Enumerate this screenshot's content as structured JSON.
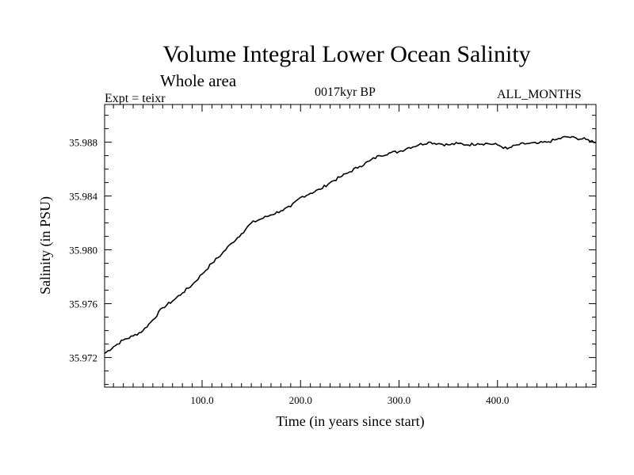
{
  "header": {
    "title": "Volume Integral Lower Ocean Salinity",
    "subtitle": "Whole area",
    "experiment": "Expt = teixr",
    "period": "0017kyr BP",
    "months": "ALL_MONTHS"
  },
  "chart_data": {
    "type": "line",
    "title": "Volume Integral Lower Ocean Salinity",
    "subtitle": "Whole area",
    "xlabel": "Time (in years since start)",
    "ylabel": "Salinity (in PSU)",
    "xlim": [
      1,
      500
    ],
    "ylim": [
      35.9698,
      35.9908
    ],
    "x_ticks": [
      100,
      200,
      300,
      400
    ],
    "x_tick_labels": [
      "100.0",
      "200.0",
      "300.0",
      "400.0"
    ],
    "y_ticks": [
      35.972,
      35.976,
      35.98,
      35.984,
      35.988
    ],
    "y_tick_labels": [
      "35.972",
      "35.976",
      "35.980",
      "35.984",
      "35.988"
    ],
    "grid": false,
    "legend": "none",
    "series": [
      {
        "x": [
          1,
          10,
          20,
          30,
          40,
          50,
          60,
          70,
          80,
          90,
          100,
          110,
          120,
          130,
          140,
          150,
          160,
          170,
          180,
          190,
          200,
          210,
          220,
          230,
          240,
          250,
          260,
          270,
          280,
          290,
          300,
          310,
          320,
          330,
          340,
          350,
          360,
          370,
          380,
          390,
          400,
          410,
          420,
          430,
          440,
          450,
          460,
          470,
          480,
          490,
          500
        ],
        "y": [
          35.9723,
          35.9728,
          35.9733,
          35.9736,
          35.974,
          35.9748,
          35.9757,
          35.9762,
          35.9768,
          35.9774,
          35.9782,
          35.979,
          35.9797,
          35.9805,
          35.9812,
          35.982,
          35.9823,
          35.9826,
          35.9829,
          35.9832,
          35.9839,
          35.9842,
          35.9845,
          35.985,
          35.9854,
          35.9858,
          35.9862,
          35.9866,
          35.987,
          35.9872,
          35.9873,
          35.9876,
          35.9878,
          35.988,
          35.9879,
          35.9878,
          35.9879,
          35.9878,
          35.9879,
          35.9879,
          35.9878,
          35.9875,
          35.9878,
          35.9879,
          35.9879,
          35.988,
          35.9882,
          35.9884,
          35.9883,
          35.9882,
          35.988
        ]
      }
    ]
  }
}
